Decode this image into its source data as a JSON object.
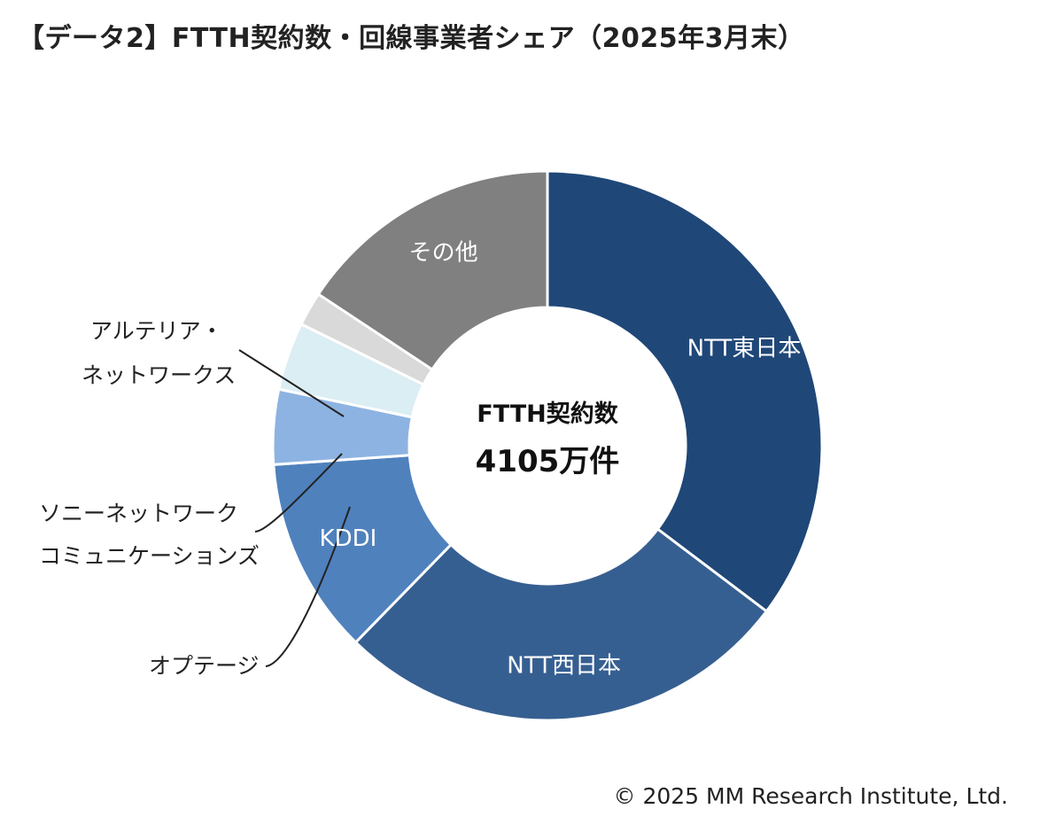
{
  "title": "【データ2】FTTH契約数・回線事業者シェア（2025年3月末）",
  "center": {
    "line1": "FTTH契約数",
    "line2": "4105万件"
  },
  "copyright": "© 2025 MM Research Institute, Ltd.",
  "chart_data": {
    "type": "pie",
    "subtype": "donut",
    "title": "【データ2】FTTH契約数・回線事業者シェア（2025年3月末）",
    "total_label": "4105万件",
    "slices": [
      {
        "name": "NTT東日本",
        "value": 35.3,
        "color": "#1f4778",
        "label_lines": [
          "NTT東日本"
        ],
        "label_inside": true
      },
      {
        "name": "NTT西日本",
        "value": 27.0,
        "color": "#365f91",
        "label_lines": [
          "NTT西日本"
        ],
        "label_inside": true
      },
      {
        "name": "KDDI",
        "value": 11.6,
        "color": "#4f81bd",
        "label_lines": [
          "KDDI"
        ],
        "label_inside": true
      },
      {
        "name": "オプテージ",
        "value": 4.4,
        "color": "#8db3e2",
        "label_lines": [
          "オプテージ"
        ],
        "label_inside": false
      },
      {
        "name": "ソニーネットワークコミュニケーションズ",
        "value": 4.0,
        "color": "#dbeef4",
        "label_lines": [
          "ソニーネットワーク",
          "コミュニケーションズ"
        ],
        "label_inside": false
      },
      {
        "name": "アルテリア・ネットワークス",
        "value": 2.0,
        "color": "#d9d9d9",
        "label_lines": [
          "アルテリア・",
          "ネットワークス"
        ],
        "label_inside": false
      },
      {
        "name": "その他",
        "value": 15.7,
        "color": "#808080",
        "label_lines": [
          "その他"
        ],
        "label_inside": true
      }
    ]
  }
}
